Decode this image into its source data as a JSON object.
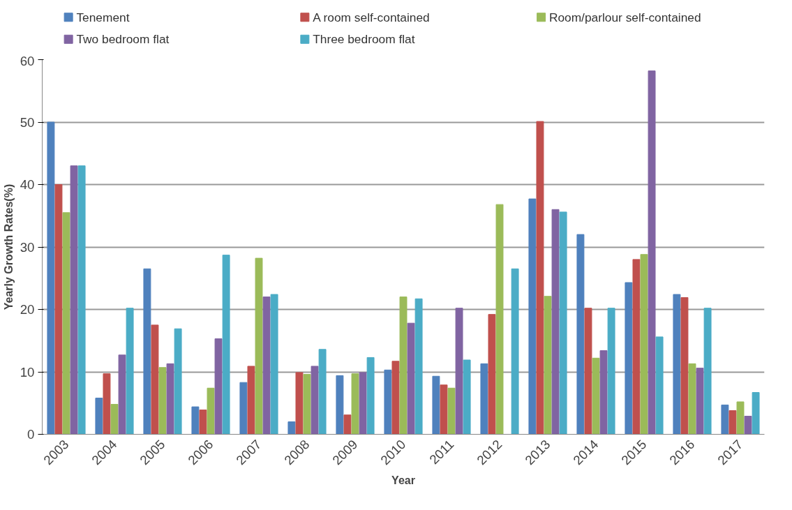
{
  "chart_data": {
    "type": "bar",
    "xlabel": "Year",
    "ylabel": "Yearly Growth Rates(%)",
    "categories": [
      "2003",
      "2004",
      "2005",
      "2006",
      "2007",
      "2008",
      "2009",
      "2010",
      "2011",
      "2012",
      "2013",
      "2014",
      "2015",
      "2016",
      "2017"
    ],
    "series": [
      {
        "name": "Tenement",
        "color": "#4f81bd",
        "values": [
          50,
          5.8,
          26.5,
          4.4,
          8.3,
          2.0,
          9.4,
          10.3,
          9.3,
          11.3,
          37.7,
          32,
          24.3,
          22.4,
          4.7
        ]
      },
      {
        "name": "A room self-contained",
        "color": "#c0504d",
        "values": [
          40,
          9.7,
          17.5,
          3.9,
          10.9,
          9.9,
          3.1,
          11.7,
          7.9,
          19.2,
          50.1,
          20.2,
          28,
          21.9,
          3.8
        ]
      },
      {
        "name": "Room/parlour self-contained",
        "color": "#9bbb59",
        "values": [
          35.5,
          4.8,
          10.7,
          7.4,
          28.2,
          9.6,
          9.7,
          22,
          7.4,
          36.8,
          22.1,
          12.2,
          28.8,
          11.3,
          5.2
        ]
      },
      {
        "name": "Two bedroom flat",
        "color": "#8064a2",
        "values": [
          43,
          12.7,
          11.3,
          15.3,
          22,
          10.9,
          9.9,
          17.8,
          20.2,
          null,
          36,
          13.4,
          58.2,
          10.6,
          2.9
        ]
      },
      {
        "name": "Three bedroom flat",
        "color": "#4bacc6",
        "values": [
          43,
          20.2,
          16.9,
          28.7,
          22.4,
          13.6,
          12.3,
          21.7,
          11.9,
          26.5,
          35.6,
          20.2,
          15.6,
          20.2,
          6.7
        ]
      }
    ],
    "ylim": [
      0,
      60
    ],
    "yticks": [
      0,
      10,
      20,
      30,
      40,
      50,
      60
    ],
    "grid": "y",
    "legend": "top"
  }
}
